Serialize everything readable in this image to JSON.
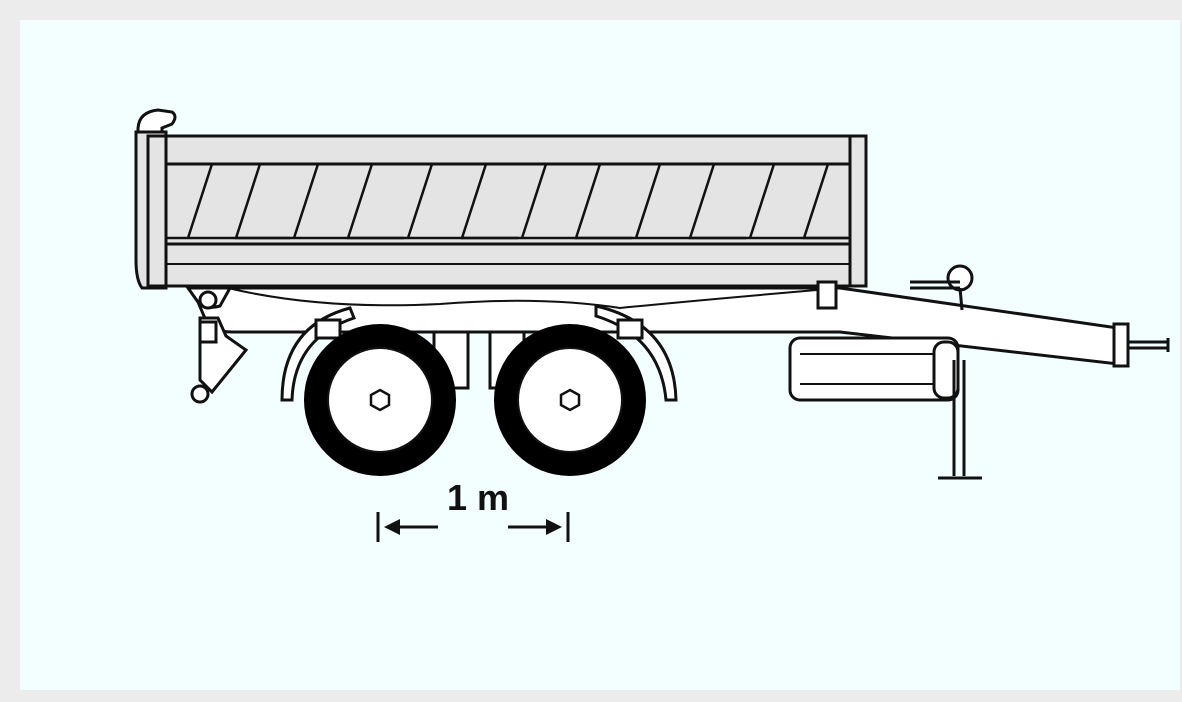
{
  "diagram": {
    "dimension_label": "1 m"
  }
}
